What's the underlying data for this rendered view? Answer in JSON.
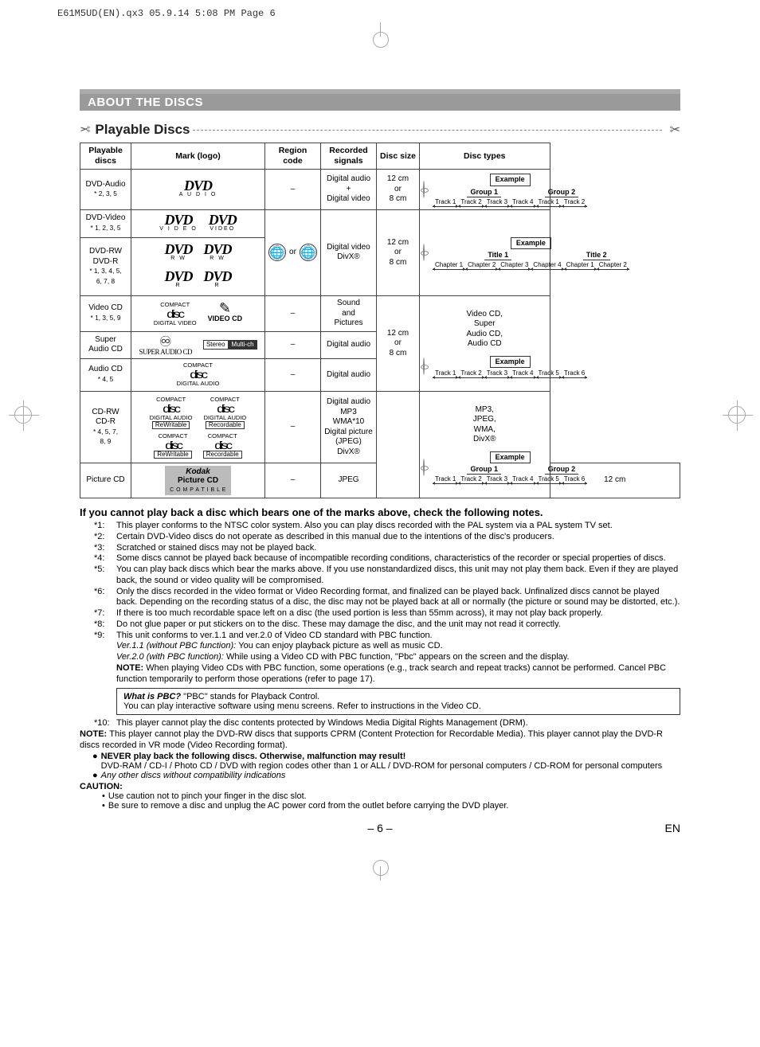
{
  "print_header": "E61M5UD(EN).qx3  05.9.14 5:08 PM  Page 6",
  "section_title": "ABOUT THE DISCS",
  "subsection_title": "Playable Discs",
  "table_headers": {
    "playable": "Playable discs",
    "mark": "Mark (logo)",
    "region": "Region code",
    "signals": "Recorded signals",
    "size": "Disc size",
    "types": "Disc types"
  },
  "rows": {
    "dvd_audio": {
      "name": "DVD-Audio",
      "note": "* 2, 3, 5",
      "logo": "DVD",
      "sub": "A U D I O",
      "region": "–",
      "signals": "Digital audio\n+\nDigital video",
      "size": "12 cm\nor\n8 cm"
    },
    "dvd_video": {
      "name": "DVD-Video",
      "note": "* 1, 2, 3, 5",
      "logo": "DVD",
      "sub1": "V I D E O",
      "sub2": "VIDEO"
    },
    "dvd_rw": {
      "name": "DVD-RW\nDVD-R",
      "note": "* 1, 3, 4, 5,\n6, 7, 8",
      "logo": "DVD",
      "sub1": "R W",
      "sub2": "R W",
      "sub3": "R",
      "sub4": "R",
      "region_or": "or",
      "signals": "Digital video\nDivX®",
      "size": "12 cm\nor\n8 cm"
    },
    "video_cd": {
      "name": "Video CD",
      "note": "* 1, 3, 5, 9",
      "region": "–",
      "signals": "Sound\nand\nPictures"
    },
    "sacd": {
      "name": "Super\nAudio CD",
      "region": "–",
      "signals": "Digital audio",
      "stereo": "Stereo",
      "multich": "Multi-ch",
      "sacd_text": "SUPER AUDIO CD"
    },
    "audio_cd": {
      "name": "Audio CD",
      "note": "* 4, 5",
      "region": "–",
      "signals": "Digital audio",
      "size": "12 cm\nor\n8 cm"
    },
    "cdrw": {
      "name": "CD-RW\nCD-R",
      "note": "* 4, 5, 7,\n8, 9",
      "region": "–",
      "signals": "Digital audio\nMP3\nWMA*10\nDigital picture\n(JPEG)\nDivX®",
      "types_text": "MP3,\nJPEG,\nWMA,\nDivX®"
    },
    "picture_cd": {
      "name": "Picture CD",
      "region": "–",
      "signals": "JPEG",
      "size": "12 cm"
    }
  },
  "types_labels": {
    "example": "Example",
    "group1": "Group 1",
    "group2": "Group 2",
    "title1": "Title 1",
    "title2": "Title 2",
    "track": "Track",
    "chapter": "Chapter",
    "vcd_list": "Video CD,\nSuper\nAudio CD,\nAudio CD"
  },
  "compact_logo": {
    "top": "COMPACT",
    "mid": "disc",
    "da": "DIGITAL AUDIO",
    "dv": "DIGITAL VIDEO",
    "rw": "ReWritable",
    "rec": "Recordable",
    "vcd": "VIDEO CD"
  },
  "kodak": {
    "brand": "Kodak",
    "prod": "Picture CD",
    "compat": "C O M P A T I B L E"
  },
  "notes_heading": "If you cannot play back a disc which bears one of the marks above, check the following notes.",
  "notes": [
    {
      "m": "*1:",
      "t": "This player conforms to the NTSC color system. Also you can play discs recorded with the PAL system via a PAL system TV set."
    },
    {
      "m": "*2:",
      "t": "Certain DVD-Video discs do not operate as described in this manual due to the intentions of the disc's producers."
    },
    {
      "m": "*3:",
      "t": "Scratched or stained discs may not be played back."
    },
    {
      "m": "*4:",
      "t": "Some discs cannot be played back because of incompatible recording conditions, characteristics of the recorder or special properties of discs."
    },
    {
      "m": "*5:",
      "t": "You can play back discs which bear the marks above. If you use nonstandardized discs, this unit may not play them back. Even if they are played back, the sound or video quality will be compromised."
    },
    {
      "m": "*6:",
      "t": "Only the discs recorded in the video format or Video Recording format, and finalized can be played back. Unfinalized discs cannot be played back. Depending on the recording status of a disc, the disc may not be played back at all or normally (the picture or sound may be distorted, etc.)."
    },
    {
      "m": "*7:",
      "t": "If there is too much recordable space left on a disc (the used portion is less than 55mm across), it may not play back properly."
    },
    {
      "m": "*8:",
      "t": "Do not glue paper or put stickers on to the disc. These may damage the disc, and the unit may not read it correctly."
    },
    {
      "m": "*9:",
      "t": "This unit conforms to ver.1.1 and ver.2.0 of Video CD standard with PBC function."
    }
  ],
  "note9_ver11_label": "Ver.1.1 (without PBC function): ",
  "note9_ver11_text": "You can enjoy playback picture as well as music CD.",
  "note9_ver20_label": "Ver.2.0 (with PBC function): ",
  "note9_ver20_text": "While using a Video CD with PBC function, \"Pbc\" appears on the screen and the display.",
  "note9_note_label": "NOTE: ",
  "note9_note_text": "When playing Video CDs with PBC function, some operations (e.g., track search and repeat tracks) cannot be performed. Cancel PBC function temporarily to perform those operations (refer to page 17).",
  "pbc_q": "What is PBC?",
  "pbc_a1": "  \"PBC\" stands for Playback Control.",
  "pbc_a2": "You can play interactive software using menu screens. Refer to instructions in the Video CD.",
  "note10_m": "*10:",
  "note10_t": "This player cannot play the disc contents protected by Windows Media Digital Rights Management (DRM).",
  "big_note_label": "NOTE: ",
  "big_note_text": "This player cannot play the DVD-RW discs that supports CPRM (Content Protection for Recordable Media). This player cannot play the DVD-R discs recorded in VR mode (Video Recording format).",
  "never_line": "NEVER play back the following discs. Otherwise, malfunction may result!",
  "never_body": "DVD-RAM / CD-I / Photo CD / DVD with region codes other than 1 or ALL / DVD-ROM for personal computers / CD-ROM for personal computers",
  "other_discs": "Any other discs without compatibility indications",
  "caution_label": "CAUTION:",
  "caution1": "Use caution not to pinch your finger in the disc slot.",
  "caution2": "Be sure to remove a disc and unplug the AC power cord from the outlet before carrying the DVD player.",
  "page_num": "– 6 –",
  "lang": "EN"
}
